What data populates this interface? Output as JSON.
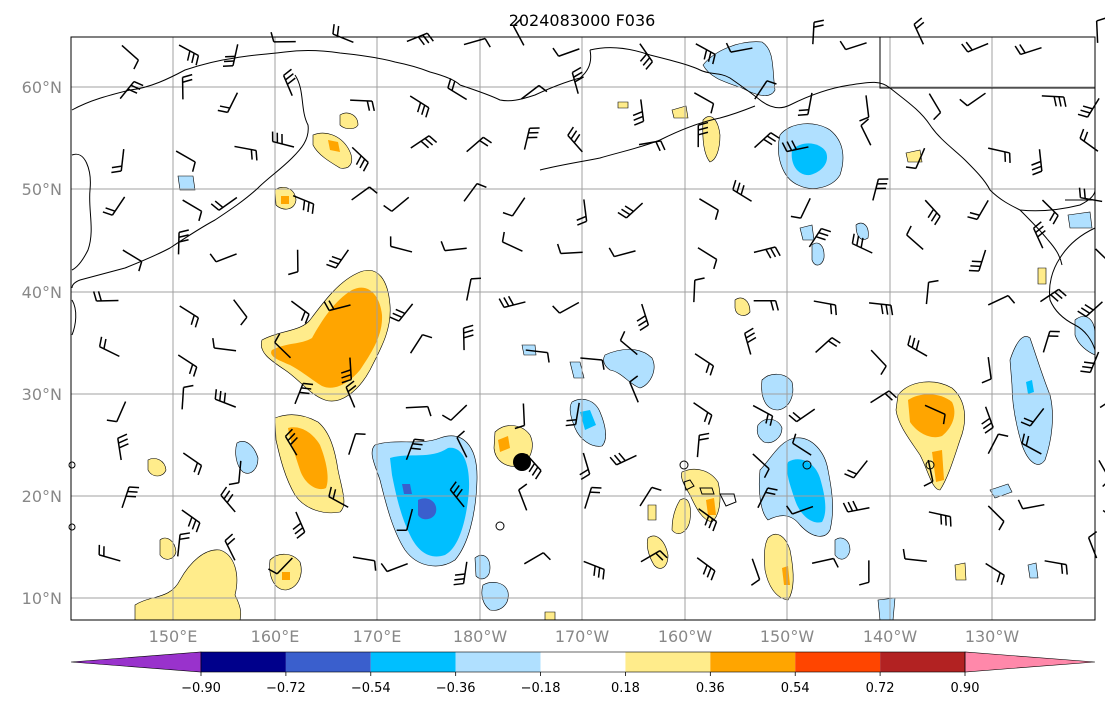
{
  "title": "2024083000 F036",
  "lat_labels": [
    "60°N",
    "50°N",
    "40°N",
    "30°N",
    "20°N",
    "10°N"
  ],
  "lon_labels": [
    "150°E",
    "160°E",
    "170°E",
    "180°W",
    "170°W",
    "160°W",
    "150°W",
    "140°W",
    "130°W"
  ],
  "colorbar": {
    "colors": [
      "#9932cc",
      "#00008b",
      "#3a5fcd",
      "#00bfff",
      "#b0e0ff",
      "#ffffff",
      "#ffec8b",
      "#ffa500",
      "#ff4500",
      "#b22222",
      "#ff88aa"
    ],
    "ticks": [
      "−0.90",
      "−0.72",
      "−0.54",
      "−0.36",
      "−0.18",
      "0.18",
      "0.36",
      "0.54",
      "0.72",
      "0.90"
    ]
  },
  "colors": {
    "light_blue": "#b0e0ff",
    "blue": "#00bfff",
    "mid_blue": "#3a5fcd",
    "yellow": "#ffec8b",
    "orange": "#ffa500",
    "grid": "#a0a0a0"
  }
}
